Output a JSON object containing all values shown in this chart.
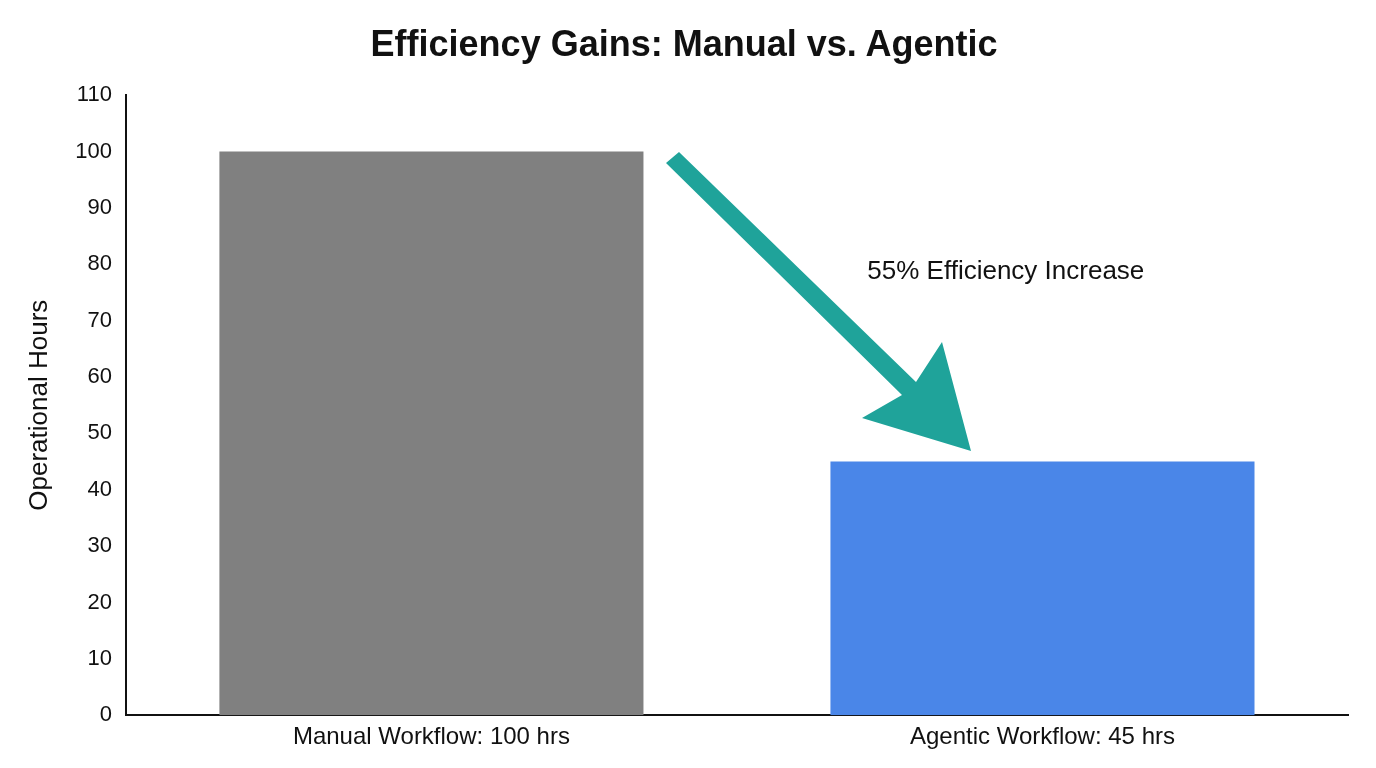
{
  "chart_data": {
    "type": "bar",
    "title": "Efficiency Gains: Manual vs. Agentic",
    "ylabel": "Operational Hours",
    "categories": [
      "Manual Workflow: 100 hrs",
      "Agentic Workflow: 45 hrs"
    ],
    "values": [
      100,
      45
    ],
    "colors": [
      "#808080",
      "#4a86e8"
    ],
    "ylim": [
      0,
      110
    ],
    "yticks": [
      0,
      10,
      20,
      30,
      40,
      50,
      60,
      70,
      80,
      90,
      100,
      110
    ],
    "grid": false,
    "legend": false,
    "annotations": [
      "55% Efficiency Increase"
    ]
  }
}
